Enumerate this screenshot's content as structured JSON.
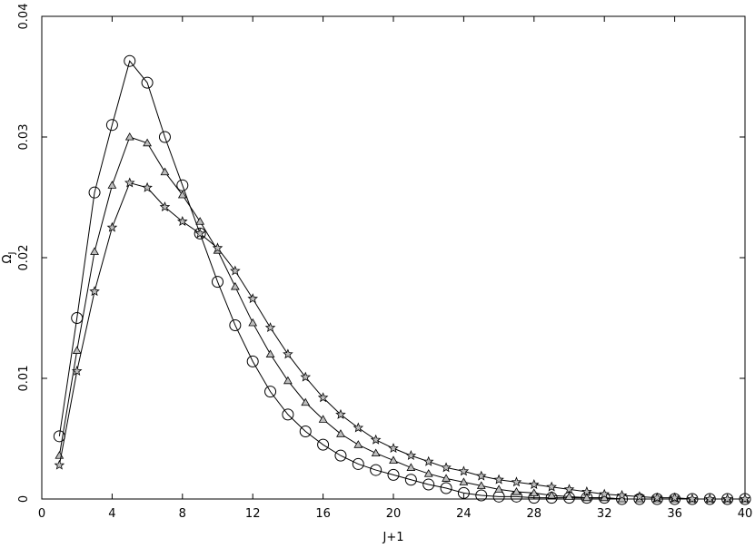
{
  "chart_data": {
    "type": "line",
    "title": "",
    "xlabel": "J+1",
    "ylabel": "Ω",
    "ylabel_subscript": "J",
    "xlim": [
      0,
      40
    ],
    "ylim": [
      0,
      0.04
    ],
    "xticks": [
      0,
      4,
      8,
      12,
      16,
      20,
      24,
      28,
      32,
      36,
      40
    ],
    "xtick_labels": [
      "0",
      "4",
      "8",
      "12",
      "16",
      "20",
      "24",
      "28",
      "32",
      "36",
      "40"
    ],
    "yticks": [
      0,
      0.01,
      0.02,
      0.03,
      0.04
    ],
    "ytick_labels": [
      "0",
      "0.01",
      "0.02",
      "0.03",
      "0.04"
    ],
    "grid": false,
    "legend": "none",
    "series": [
      {
        "marker": "circle",
        "x": [
          1,
          2,
          3,
          4,
          5,
          6,
          7,
          8,
          9,
          10,
          11,
          12,
          13,
          14,
          15,
          16,
          17,
          18,
          19,
          20,
          21,
          22,
          23,
          24,
          25,
          26,
          27,
          28,
          29,
          30,
          31,
          32,
          33,
          34,
          35,
          36,
          37,
          38,
          39,
          40
        ],
        "y": [
          0.0052,
          0.015,
          0.0254,
          0.031,
          0.0363,
          0.0345,
          0.03,
          0.026,
          0.022,
          0.018,
          0.0144,
          0.0114,
          0.0089,
          0.007,
          0.0056,
          0.0045,
          0.0036,
          0.0029,
          0.0024,
          0.002,
          0.0016,
          0.0012,
          0.0009,
          0.0005,
          0.0003,
          0.0002,
          0.0002,
          0.0001,
          0.0001,
          0.0001,
          0.0001,
          0.0001,
          0.0,
          0.0,
          0.0,
          0.0,
          0.0,
          0.0,
          0.0,
          0.0
        ]
      },
      {
        "marker": "triangle",
        "x": [
          1,
          2,
          3,
          4,
          5,
          6,
          7,
          8,
          9,
          10,
          11,
          12,
          13,
          14,
          15,
          16,
          17,
          18,
          19,
          20,
          21,
          22,
          23,
          24,
          25,
          26,
          27,
          28,
          29,
          30,
          31,
          32,
          33,
          34,
          35,
          36,
          37,
          38,
          39,
          40
        ],
        "y": [
          0.0036,
          0.0123,
          0.0205,
          0.026,
          0.03,
          0.0295,
          0.0271,
          0.0252,
          0.023,
          0.0206,
          0.0176,
          0.0146,
          0.012,
          0.0098,
          0.008,
          0.0066,
          0.0054,
          0.0045,
          0.0038,
          0.0032,
          0.0026,
          0.0021,
          0.0017,
          0.0014,
          0.0011,
          0.0008,
          0.0006,
          0.0005,
          0.0003,
          0.0002,
          0.0001,
          0.0001,
          0.0,
          0.0,
          0.0,
          0.0,
          0.0,
          0.0,
          0.0,
          0.0
        ]
      },
      {
        "marker": "star",
        "x": [
          1,
          2,
          3,
          4,
          5,
          6,
          7,
          8,
          9,
          10,
          11,
          12,
          13,
          14,
          15,
          16,
          17,
          18,
          19,
          20,
          21,
          22,
          23,
          24,
          25,
          26,
          27,
          28,
          29,
          30,
          31,
          32,
          33,
          34,
          35,
          36,
          37,
          38,
          39,
          40
        ],
        "y": [
          0.0028,
          0.0106,
          0.0172,
          0.0225,
          0.0262,
          0.0258,
          0.0242,
          0.023,
          0.022,
          0.0208,
          0.0189,
          0.0166,
          0.0142,
          0.012,
          0.0101,
          0.0084,
          0.007,
          0.0059,
          0.0049,
          0.0042,
          0.0036,
          0.0031,
          0.0026,
          0.0023,
          0.0019,
          0.0016,
          0.0014,
          0.0012,
          0.001,
          0.0008,
          0.0006,
          0.0004,
          0.0003,
          0.0002,
          0.0001,
          0.0001,
          0.0,
          0.0,
          0.0,
          0.0
        ]
      }
    ]
  }
}
